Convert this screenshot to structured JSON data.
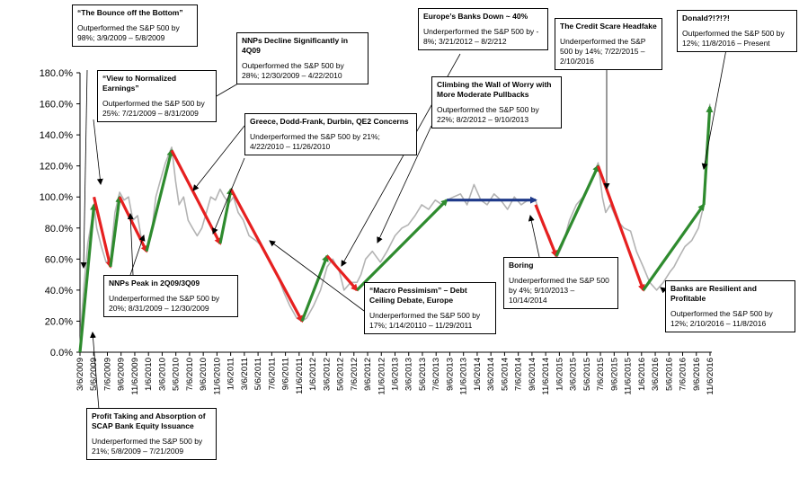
{
  "chart_data": {
    "type": "line",
    "ylim": [
      0,
      180
    ],
    "y_ticks": [
      "0.0%",
      "20.0%",
      "40.0%",
      "60.0%",
      "80.0%",
      "100.0%",
      "120.0%",
      "140.0%",
      "160.0%",
      "180.0%"
    ],
    "x_ticks": [
      "3/6/2009",
      "5/6/2009",
      "7/6/2009",
      "9/6/2009",
      "11/6/2009",
      "1/6/2010",
      "3/6/2010",
      "5/6/2010",
      "7/6/2010",
      "9/6/2010",
      "11/6/2010",
      "1/6/2011",
      "3/6/2011",
      "5/6/2011",
      "7/6/2011",
      "9/6/2011",
      "11/6/2011",
      "1/6/2012",
      "3/6/2012",
      "5/6/2012",
      "7/6/2012",
      "9/6/2012",
      "11/6/2012",
      "1/6/2013",
      "3/6/2013",
      "5/6/2013",
      "7/6/2013",
      "9/6/2013",
      "11/6/2013",
      "1/6/2014",
      "3/6/2014",
      "5/6/2014",
      "7/6/2014",
      "9/6/2014",
      "11/6/2014",
      "1/6/2015",
      "3/6/2015",
      "5/6/2015",
      "7/6/2015",
      "9/6/2015",
      "11/6/2015",
      "1/6/2016",
      "3/6/2016",
      "5/6/2016",
      "7/6/2016",
      "9/6/2016",
      "11/6/2016"
    ],
    "grid": false,
    "series": [
      {
        "color": "#b3b3b3",
        "x": [
          "3/6/2009",
          "3/12/2009",
          "3/25/2009",
          "4/10/2009",
          "5/1/2009",
          "5/8/2009",
          "5/20/2009",
          "6/10/2009",
          "7/1/2009",
          "7/21/2009",
          "8/10/2009",
          "8/31/2009",
          "9/20/2009",
          "10/10/2009",
          "10/30/2009",
          "11/20/2009",
          "12/10/2009",
          "12/30/2009",
          "1/20/2010",
          "2/10/2010",
          "3/1/2010",
          "3/25/2010",
          "4/22/2010",
          "5/10/2010",
          "5/25/2010",
          "6/15/2010",
          "7/5/2010",
          "7/25/2010",
          "8/15/2010",
          "9/5/2010",
          "9/25/2010",
          "10/15/2010",
          "11/5/2010",
          "11/26/2010",
          "12/15/2010",
          "1/5/2011",
          "1/25/2011",
          "2/15/2011",
          "3/10/2011",
          "4/5/2011",
          "5/5/2011",
          "6/5/2011",
          "7/5/2011",
          "8/10/2011",
          "9/10/2011",
          "10/5/2011",
          "11/5/2011",
          "11/29/2011",
          "12/20/2011",
          "1/20/2012",
          "2/20/2012",
          "3/21/2012",
          "4/15/2012",
          "5/15/2012",
          "6/5/2012",
          "7/5/2012",
          "8/2/2012",
          "8/20/2012",
          "9/10/2012",
          "10/10/2012",
          "11/15/2012",
          "12/15/2012",
          "1/20/2013",
          "2/20/2013",
          "3/20/2013",
          "4/20/2013",
          "5/20/2013",
          "6/20/2013",
          "7/20/2013",
          "8/20/2013",
          "9/10/2013",
          "10/10/2013",
          "11/10/2013",
          "12/10/2013",
          "1/10/2014",
          "2/10/2014",
          "3/10/2014",
          "4/10/2014",
          "5/10/2014",
          "6/10/2014",
          "7/10/2014",
          "8/10/2014",
          "9/10/2014",
          "10/14/2014",
          "11/15/2014",
          "12/15/2014",
          "1/15/2015",
          "2/15/2015",
          "3/15/2015",
          "4/15/2015",
          "5/15/2015",
          "6/15/2015",
          "7/22/2015",
          "8/10/2015",
          "8/25/2015",
          "9/15/2015",
          "10/15/2015",
          "11/15/2015",
          "12/15/2015",
          "1/10/2016",
          "2/10/2016",
          "3/10/2016",
          "4/10/2016",
          "5/10/2016",
          "6/10/2016",
          "6/27/2016",
          "7/15/2016",
          "8/15/2016",
          "9/15/2016",
          "10/15/2016",
          "11/8/2016",
          "11/20/2016",
          "12/5/2016"
        ],
        "values": [
          0,
          20,
          45,
          70,
          88,
          95,
          80,
          68,
          58,
          60,
          90,
          103,
          98,
          100,
          85,
          88,
          70,
          65,
          75,
          100,
          110,
          122,
          132,
          110,
          95,
          100,
          85,
          80,
          75,
          80,
          90,
          100,
          98,
          105,
          100,
          96,
          100,
          90,
          85,
          75,
          72,
          68,
          60,
          50,
          38,
          30,
          22,
          20,
          22,
          30,
          40,
          55,
          60,
          52,
          40,
          45,
          45,
          50,
          60,
          65,
          58,
          65,
          75,
          80,
          82,
          88,
          95,
          92,
          98,
          95,
          98,
          100,
          102,
          95,
          108,
          98,
          95,
          102,
          98,
          92,
          100,
          95,
          98,
          98,
          82,
          75,
          60,
          70,
          85,
          95,
          100,
          108,
          122,
          100,
          90,
          95,
          85,
          80,
          78,
          65,
          55,
          45,
          40,
          45,
          52,
          55,
          60,
          68,
          72,
          80,
          95,
          130,
          160
        ]
      }
    ],
    "trend_segments": [
      {
        "color": "#2e8b2e",
        "x": [
          "3/6/2009",
          "5/8/2009"
        ],
        "values": [
          0,
          95
        ]
      },
      {
        "color": "#e62020",
        "x": [
          "5/8/2009",
          "7/21/2009"
        ],
        "values": [
          100,
          55
        ]
      },
      {
        "color": "#2e8b2e",
        "x": [
          "7/21/2009",
          "8/31/2009"
        ],
        "values": [
          55,
          100
        ]
      },
      {
        "color": "#e62020",
        "x": [
          "8/31/2009",
          "12/30/2009"
        ],
        "values": [
          100,
          65
        ]
      },
      {
        "color": "#2e8b2e",
        "x": [
          "12/30/2009",
          "4/22/2010"
        ],
        "values": [
          65,
          130
        ]
      },
      {
        "color": "#e62020",
        "x": [
          "4/22/2010",
          "11/26/2010"
        ],
        "values": [
          130,
          70
        ]
      },
      {
        "color": "#2e8b2e",
        "x": [
          "11/26/2010",
          "1/14/2011"
        ],
        "values": [
          70,
          105
        ]
      },
      {
        "color": "#e62020",
        "x": [
          "1/14/2011",
          "11/29/2011"
        ],
        "values": [
          105,
          20
        ]
      },
      {
        "color": "#2e8b2e",
        "x": [
          "11/29/2011",
          "3/21/2012"
        ],
        "values": [
          20,
          62
        ]
      },
      {
        "color": "#e62020",
        "x": [
          "3/21/2012",
          "8/2/2012"
        ],
        "values": [
          62,
          40
        ]
      },
      {
        "color": "#2e8b2e",
        "x": [
          "8/2/2012",
          "9/10/2013"
        ],
        "values": [
          40,
          98
        ]
      },
      {
        "color": "#1f3a8a",
        "x": [
          "9/10/2013",
          "10/14/2014"
        ],
        "values": [
          98,
          98
        ]
      },
      {
        "color": "#e62020",
        "x": [
          "10/14/2014",
          "1/15/2015"
        ],
        "values": [
          95,
          62
        ]
      },
      {
        "color": "#2e8b2e",
        "x": [
          "1/15/2015",
          "7/22/2015"
        ],
        "values": [
          62,
          120
        ]
      },
      {
        "color": "#e62020",
        "x": [
          "7/22/2015",
          "2/10/2016"
        ],
        "values": [
          120,
          40
        ]
      },
      {
        "color": "#2e8b2e",
        "x": [
          "2/10/2016",
          "11/8/2016"
        ],
        "values": [
          40,
          95
        ]
      },
      {
        "color": "#2e8b2e",
        "x": [
          "11/8/2016",
          "12/5/2016"
        ],
        "values": [
          95,
          158
        ]
      }
    ],
    "annotations": [
      {
        "title": "“The Bounce off the Bottom”",
        "body": "Outperformed the S&P 500 by 98%; 3/9/2009 – 5/8/2009"
      },
      {
        "title": "“View to Normalized Earnings”",
        "body": "Outperformed the S&P 500 by 25%: 7/21/2009 – 8/31/2009"
      },
      {
        "title": "NNPs Decline Significantly in 4Q09",
        "body": "Outperformed the S&P 500 by 28%; 12/30/2009 – 4/22/2010"
      },
      {
        "title": "Greece, Dodd-Frank, Durbin, QE2 Concerns",
        "body": "Underperformed the S&P 500 by 21%; 4/22/2010 – 11/26/2010"
      },
      {
        "title": "Europe’s Banks Down ~ 40%",
        "body": "Underperformed the S&P 500 by - 8%; 3/21/2012 – 8/2/212"
      },
      {
        "title": "Climbing the Wall of Worry with More Moderate Pullbacks",
        "body": "Outperformed the S&P 500 by 22%; 8/2/2012 – 9/10/2013"
      },
      {
        "title": "The Credit Scare Headfake",
        "body": "Underperformed the S&P 500 by 14%; 7/22/2015 – 2/10/2016"
      },
      {
        "title": "Donald?!?!?!",
        "body": "Outperformed the S&P 500 by 12%; 11/8/2016 – Present"
      },
      {
        "title": "NNPs Peak in 2Q09/3Q09",
        "body": "Underperformed the S&P 500 by 20%; 8/31/2009 – 12/30/2009"
      },
      {
        "title": "“Macro Pessimism” – Debt Ceiling Debate, Europe",
        "body": "Underperformed the S&P 500 by 17%; 1/14/20110 – 11/29/2011"
      },
      {
        "title": "Boring",
        "body": "Underperformed the S&P 500 by 4%; 9/10/2013 – 10/14/2014"
      },
      {
        "title": "Banks are Resilient and Profitable",
        "body": "Outperformed the S&P 500 by 12%; 2/10/2016 – 11/8/2016"
      },
      {
        "title": "Profit Taking and Absorption of SCAP Bank Equity Issuance",
        "body": "Underperformed the S&P 500 by 21%; 5/8/2009 – 7/21/2009"
      }
    ]
  }
}
